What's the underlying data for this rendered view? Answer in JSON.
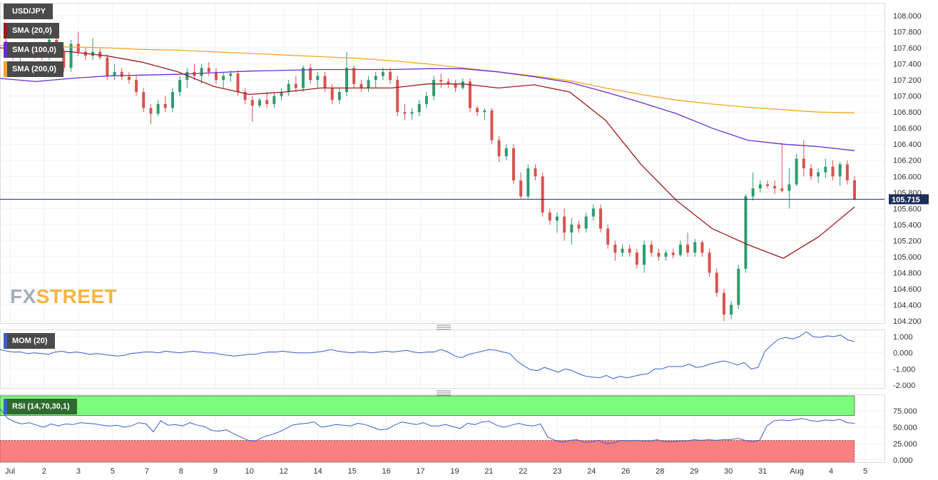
{
  "symbol": "USD/JPY",
  "watermark": {
    "part1": "FX",
    "part2": "STREET"
  },
  "last_price": "105.715",
  "colors": {
    "up": "#2e9b6f",
    "down": "#d9534f",
    "sma20": "#9b1c1c",
    "sma100": "#6a2ecf",
    "sma200": "#f5a623",
    "mom": "#3a5fcd",
    "rsi": "#3a5fcd",
    "rsi_overbought": "#7cfc7c",
    "rsi_oversold": "#f88080",
    "price_line": "#1f2d5a"
  },
  "indicators": {
    "sma20_label": "SMA (20,0)",
    "sma100_label": "SMA (100,0)",
    "sma200_label": "SMA (200,0)",
    "mom_label": "MOM (20)",
    "rsi_label": "RSI (14,70,30,1)"
  },
  "chart_data": {
    "type": "candlestick",
    "title": "USD/JPY",
    "price_axis": {
      "ylim": [
        104.2,
        108.0
      ],
      "ticks": [
        "108.000",
        "107.800",
        "107.600",
        "107.400",
        "107.200",
        "107.000",
        "106.800",
        "106.600",
        "106.400",
        "106.200",
        "106.000",
        "105.800",
        "105.600",
        "105.400",
        "105.200",
        "105.000",
        "104.800",
        "104.600",
        "104.400",
        "104.200"
      ]
    },
    "mom_axis": {
      "ylim": [
        -2.0,
        1.0
      ],
      "ticks": [
        "1.000",
        "0.000",
        "-1.000",
        "-2.000"
      ]
    },
    "rsi_axis": {
      "ylim": [
        0,
        75
      ],
      "ticks": [
        "75.000",
        "50.000",
        "25.000",
        "0.000"
      ],
      "overbought": 70,
      "oversold": 30
    },
    "x_ticks": [
      "Jul",
      "2",
      "3",
      "5",
      "7",
      "8",
      "9",
      "10",
      "12",
      "14",
      "15",
      "16",
      "17",
      "19",
      "21",
      "22",
      "23",
      "24",
      "26",
      "28",
      "29",
      "30",
      "31",
      "Aug",
      "4",
      "5"
    ],
    "sma200": [
      107.63,
      107.62,
      107.61,
      107.6,
      107.58,
      107.57,
      107.55,
      107.53,
      107.51,
      107.49,
      107.47,
      107.44,
      107.4,
      107.35,
      107.3,
      107.25,
      107.19,
      107.1,
      107.02,
      106.95,
      106.9,
      106.86,
      106.83,
      106.8,
      106.79
    ],
    "sma100": [
      107.22,
      107.18,
      107.22,
      107.25,
      107.26,
      107.27,
      107.29,
      107.31,
      107.32,
      107.33,
      107.33,
      107.33,
      107.34,
      107.34,
      107.3,
      107.24,
      107.17,
      107.05,
      106.92,
      106.78,
      106.6,
      106.45,
      106.4,
      106.37,
      106.32
    ],
    "sma20": [
      107.6,
      107.58,
      107.55,
      107.5,
      107.42,
      107.3,
      107.12,
      107.02,
      107.05,
      107.1,
      107.1,
      107.1,
      107.15,
      107.15,
      107.1,
      107.14,
      107.05,
      106.7,
      106.15,
      105.7,
      105.35,
      105.15,
      104.98,
      105.25,
      105.62
    ],
    "candles": [
      {
        "o": 107.68,
        "h": 107.8,
        "l": 107.55,
        "c": 107.6
      },
      {
        "o": 107.6,
        "h": 107.65,
        "l": 107.45,
        "c": 107.5
      },
      {
        "o": 107.5,
        "h": 107.6,
        "l": 107.4,
        "c": 107.55
      },
      {
        "o": 107.55,
        "h": 107.62,
        "l": 107.48,
        "c": 107.52
      },
      {
        "o": 107.52,
        "h": 107.58,
        "l": 107.46,
        "c": 107.5
      },
      {
        "o": 107.5,
        "h": 107.55,
        "l": 107.45,
        "c": 107.48
      },
      {
        "o": 107.48,
        "h": 107.75,
        "l": 107.45,
        "c": 107.7
      },
      {
        "o": 107.7,
        "h": 107.75,
        "l": 107.5,
        "c": 107.55
      },
      {
        "o": 107.55,
        "h": 107.6,
        "l": 107.3,
        "c": 107.35
      },
      {
        "o": 107.35,
        "h": 107.7,
        "l": 107.3,
        "c": 107.65
      },
      {
        "o": 107.65,
        "h": 107.8,
        "l": 107.5,
        "c": 107.55
      },
      {
        "o": 107.55,
        "h": 107.6,
        "l": 107.45,
        "c": 107.5
      },
      {
        "o": 107.5,
        "h": 107.72,
        "l": 107.45,
        "c": 107.55
      },
      {
        "o": 107.55,
        "h": 107.6,
        "l": 107.45,
        "c": 107.48
      },
      {
        "o": 107.48,
        "h": 107.52,
        "l": 107.2,
        "c": 107.25
      },
      {
        "o": 107.25,
        "h": 107.4,
        "l": 107.2,
        "c": 107.3
      },
      {
        "o": 107.3,
        "h": 107.35,
        "l": 107.2,
        "c": 107.24
      },
      {
        "o": 107.24,
        "h": 107.3,
        "l": 107.15,
        "c": 107.2
      },
      {
        "o": 107.2,
        "h": 107.25,
        "l": 107.0,
        "c": 107.05
      },
      {
        "o": 107.05,
        "h": 107.1,
        "l": 106.8,
        "c": 106.85
      },
      {
        "o": 106.85,
        "h": 106.9,
        "l": 106.65,
        "c": 106.78
      },
      {
        "o": 106.78,
        "h": 106.95,
        "l": 106.75,
        "c": 106.9
      },
      {
        "o": 106.9,
        "h": 107.0,
        "l": 106.8,
        "c": 106.85
      },
      {
        "o": 106.85,
        "h": 107.1,
        "l": 106.8,
        "c": 107.05
      },
      {
        "o": 107.05,
        "h": 107.25,
        "l": 107.0,
        "c": 107.2
      },
      {
        "o": 107.2,
        "h": 107.35,
        "l": 107.1,
        "c": 107.3
      },
      {
        "o": 107.3,
        "h": 107.4,
        "l": 107.2,
        "c": 107.25
      },
      {
        "o": 107.25,
        "h": 107.4,
        "l": 107.15,
        "c": 107.35
      },
      {
        "o": 107.35,
        "h": 107.42,
        "l": 107.25,
        "c": 107.3
      },
      {
        "o": 107.3,
        "h": 107.35,
        "l": 107.15,
        "c": 107.2
      },
      {
        "o": 107.2,
        "h": 107.3,
        "l": 107.1,
        "c": 107.25
      },
      {
        "o": 107.25,
        "h": 107.32,
        "l": 107.18,
        "c": 107.28
      },
      {
        "o": 107.28,
        "h": 107.32,
        "l": 107.0,
        "c": 107.05
      },
      {
        "o": 107.05,
        "h": 107.1,
        "l": 106.9,
        "c": 106.95
      },
      {
        "o": 106.95,
        "h": 107.0,
        "l": 106.68,
        "c": 106.88
      },
      {
        "o": 106.88,
        "h": 106.98,
        "l": 106.85,
        "c": 106.95
      },
      {
        "o": 106.95,
        "h": 107.05,
        "l": 106.85,
        "c": 106.9
      },
      {
        "o": 106.9,
        "h": 107.05,
        "l": 106.85,
        "c": 107.0
      },
      {
        "o": 107.0,
        "h": 107.1,
        "l": 106.95,
        "c": 107.05
      },
      {
        "o": 107.05,
        "h": 107.2,
        "l": 107.0,
        "c": 107.15
      },
      {
        "o": 107.15,
        "h": 107.25,
        "l": 107.05,
        "c": 107.1
      },
      {
        "o": 107.1,
        "h": 107.38,
        "l": 107.05,
        "c": 107.35
      },
      {
        "o": 107.35,
        "h": 107.4,
        "l": 107.15,
        "c": 107.2
      },
      {
        "o": 107.2,
        "h": 107.3,
        "l": 107.1,
        "c": 107.25
      },
      {
        "o": 107.25,
        "h": 107.3,
        "l": 107.05,
        "c": 107.1
      },
      {
        "o": 107.1,
        "h": 107.15,
        "l": 106.9,
        "c": 106.95
      },
      {
        "o": 106.95,
        "h": 107.1,
        "l": 106.9,
        "c": 107.05
      },
      {
        "o": 107.05,
        "h": 107.55,
        "l": 107.0,
        "c": 107.35
      },
      {
        "o": 107.35,
        "h": 107.38,
        "l": 107.1,
        "c": 107.15
      },
      {
        "o": 107.15,
        "h": 107.2,
        "l": 107.05,
        "c": 107.1
      },
      {
        "o": 107.1,
        "h": 107.25,
        "l": 107.05,
        "c": 107.2
      },
      {
        "o": 107.2,
        "h": 107.3,
        "l": 107.1,
        "c": 107.25
      },
      {
        "o": 107.25,
        "h": 107.35,
        "l": 107.2,
        "c": 107.3
      },
      {
        "o": 107.3,
        "h": 107.35,
        "l": 107.15,
        "c": 107.2
      },
      {
        "o": 107.2,
        "h": 107.25,
        "l": 106.75,
        "c": 106.8
      },
      {
        "o": 106.8,
        "h": 106.9,
        "l": 106.7,
        "c": 106.78
      },
      {
        "o": 106.78,
        "h": 106.85,
        "l": 106.7,
        "c": 106.8
      },
      {
        "o": 106.8,
        "h": 106.95,
        "l": 106.75,
        "c": 106.9
      },
      {
        "o": 106.9,
        "h": 107.05,
        "l": 106.85,
        "c": 107.0
      },
      {
        "o": 107.0,
        "h": 107.25,
        "l": 106.95,
        "c": 107.2
      },
      {
        "o": 107.2,
        "h": 107.28,
        "l": 107.1,
        "c": 107.18
      },
      {
        "o": 107.18,
        "h": 107.22,
        "l": 107.1,
        "c": 107.15
      },
      {
        "o": 107.15,
        "h": 107.2,
        "l": 107.05,
        "c": 107.1
      },
      {
        "o": 107.1,
        "h": 107.22,
        "l": 107.08,
        "c": 107.18
      },
      {
        "o": 107.18,
        "h": 107.22,
        "l": 106.8,
        "c": 106.85
      },
      {
        "o": 106.85,
        "h": 106.88,
        "l": 106.75,
        "c": 106.8
      },
      {
        "o": 106.8,
        "h": 106.85,
        "l": 106.7,
        "c": 106.82
      },
      {
        "o": 106.82,
        "h": 106.85,
        "l": 106.4,
        "c": 106.45
      },
      {
        "o": 106.45,
        "h": 106.5,
        "l": 106.18,
        "c": 106.25
      },
      {
        "o": 106.25,
        "h": 106.4,
        "l": 106.2,
        "c": 106.35
      },
      {
        "o": 106.35,
        "h": 106.4,
        "l": 105.9,
        "c": 105.95
      },
      {
        "o": 105.95,
        "h": 106.05,
        "l": 105.72,
        "c": 105.75
      },
      {
        "o": 105.75,
        "h": 106.15,
        "l": 105.72,
        "c": 106.1
      },
      {
        "o": 106.1,
        "h": 106.15,
        "l": 105.95,
        "c": 106.0
      },
      {
        "o": 106.0,
        "h": 106.05,
        "l": 105.5,
        "c": 105.55
      },
      {
        "o": 105.55,
        "h": 105.6,
        "l": 105.4,
        "c": 105.45
      },
      {
        "o": 105.45,
        "h": 105.55,
        "l": 105.3,
        "c": 105.5
      },
      {
        "o": 105.5,
        "h": 105.6,
        "l": 105.2,
        "c": 105.3
      },
      {
        "o": 105.3,
        "h": 105.48,
        "l": 105.15,
        "c": 105.4
      },
      {
        "o": 105.4,
        "h": 105.45,
        "l": 105.3,
        "c": 105.35
      },
      {
        "o": 105.35,
        "h": 105.55,
        "l": 105.3,
        "c": 105.5
      },
      {
        "o": 105.5,
        "h": 105.65,
        "l": 105.45,
        "c": 105.6
      },
      {
        "o": 105.6,
        "h": 105.65,
        "l": 105.3,
        "c": 105.35
      },
      {
        "o": 105.35,
        "h": 105.4,
        "l": 105.1,
        "c": 105.15
      },
      {
        "o": 105.15,
        "h": 105.2,
        "l": 104.95,
        "c": 105.05
      },
      {
        "o": 105.05,
        "h": 105.15,
        "l": 105.0,
        "c": 105.1
      },
      {
        "o": 105.1,
        "h": 105.15,
        "l": 105.0,
        "c": 105.05
      },
      {
        "o": 105.05,
        "h": 105.1,
        "l": 104.85,
        "c": 104.9
      },
      {
        "o": 104.9,
        "h": 105.2,
        "l": 104.8,
        "c": 105.15
      },
      {
        "o": 105.15,
        "h": 105.2,
        "l": 105.0,
        "c": 105.05
      },
      {
        "o": 105.05,
        "h": 105.1,
        "l": 104.95,
        "c": 105.0
      },
      {
        "o": 105.0,
        "h": 105.08,
        "l": 104.95,
        "c": 105.05
      },
      {
        "o": 105.05,
        "h": 105.1,
        "l": 104.98,
        "c": 105.02
      },
      {
        "o": 105.02,
        "h": 105.2,
        "l": 105.0,
        "c": 105.15
      },
      {
        "o": 105.15,
        "h": 105.3,
        "l": 105.0,
        "c": 105.05
      },
      {
        "o": 105.05,
        "h": 105.22,
        "l": 105.0,
        "c": 105.18
      },
      {
        "o": 105.18,
        "h": 105.2,
        "l": 105.0,
        "c": 105.05
      },
      {
        "o": 105.05,
        "h": 105.1,
        "l": 104.75,
        "c": 104.8
      },
      {
        "o": 104.8,
        "h": 104.85,
        "l": 104.5,
        "c": 104.55
      },
      {
        "o": 104.55,
        "h": 104.6,
        "l": 104.2,
        "c": 104.28
      },
      {
        "o": 104.28,
        "h": 104.45,
        "l": 104.22,
        "c": 104.4
      },
      {
        "o": 104.4,
        "h": 104.9,
        "l": 104.35,
        "c": 104.85
      },
      {
        "o": 104.85,
        "h": 105.78,
        "l": 104.8,
        "c": 105.75
      },
      {
        "o": 105.75,
        "h": 106.05,
        "l": 105.7,
        "c": 105.85
      },
      {
        "o": 105.85,
        "h": 105.95,
        "l": 105.8,
        "c": 105.9
      },
      {
        "o": 105.9,
        "h": 105.95,
        "l": 105.85,
        "c": 105.88
      },
      {
        "o": 105.88,
        "h": 105.95,
        "l": 105.78,
        "c": 105.85
      },
      {
        "o": 105.85,
        "h": 106.42,
        "l": 105.8,
        "c": 105.82
      },
      {
        "o": 105.82,
        "h": 106.1,
        "l": 105.6,
        "c": 105.9
      },
      {
        "o": 105.9,
        "h": 106.28,
        "l": 105.88,
        "c": 106.22
      },
      {
        "o": 106.22,
        "h": 106.45,
        "l": 106.0,
        "c": 106.1
      },
      {
        "o": 106.1,
        "h": 106.15,
        "l": 105.95,
        "c": 106.0
      },
      {
        "o": 106.0,
        "h": 106.1,
        "l": 105.92,
        "c": 106.05
      },
      {
        "o": 106.05,
        "h": 106.22,
        "l": 105.98,
        "c": 106.12
      },
      {
        "o": 106.12,
        "h": 106.2,
        "l": 105.95,
        "c": 106.0
      },
      {
        "o": 106.0,
        "h": 106.18,
        "l": 105.88,
        "c": 106.15
      },
      {
        "o": 106.15,
        "h": 106.2,
        "l": 105.9,
        "c": 105.95
      },
      {
        "o": 105.95,
        "h": 106.0,
        "l": 105.7,
        "c": 105.715
      }
    ],
    "mom": [
      0.2,
      0.1,
      0.05,
      0.05,
      -0.05,
      0.0,
      -0.05,
      -0.1,
      0.05,
      0.1,
      0.0,
      0.05,
      0.0,
      -0.1,
      -0.05,
      -0.1,
      -0.15,
      -0.2,
      -0.15,
      -0.05,
      0.0,
      0.05,
      0.05,
      0.0,
      0.1,
      0.05,
      0.0,
      0.05,
      0.1,
      0.05,
      0.0,
      0.0,
      -0.1,
      -0.15,
      -0.2,
      -0.15,
      -0.1,
      -0.1,
      0.0,
      0.05,
      0.05,
      0.1,
      0.05,
      0.0,
      0.0,
      0.0,
      0.05,
      0.1,
      0.2,
      0.1,
      0.05,
      0.0,
      0.05,
      0.05,
      0.0,
      0.05,
      0.1,
      0.05,
      0.1,
      0.15,
      0.05,
      0.0,
      0.05,
      0.05,
      0.2,
      0.05,
      -0.2,
      -0.3,
      -0.1,
      0.0,
      0.1,
      0.2,
      0.15,
      0.05,
      -0.05,
      -0.5,
      -0.8,
      -1.05,
      -1.1,
      -0.9,
      -1.05,
      -1.2,
      -1.0,
      -1.1,
      -1.3,
      -1.45,
      -1.5,
      -1.55,
      -1.4,
      -1.6,
      -1.45,
      -1.55,
      -1.45,
      -1.35,
      -1.3,
      -1.0,
      -1.0,
      -0.85,
      -0.85,
      -0.85,
      -0.7,
      -0.9,
      -0.85,
      -0.7,
      -0.6,
      -0.5,
      -0.6,
      -0.75,
      -0.6,
      -1.0,
      -0.9,
      0.1,
      0.5,
      0.85,
      0.95,
      0.85,
      1.0,
      1.3,
      1.0,
      0.95,
      1.05,
      1.0,
      1.1,
      0.8,
      0.7
    ],
    "rsi": [
      78,
      64,
      58,
      55,
      57,
      53,
      50,
      55,
      52,
      55,
      54,
      57,
      56,
      55,
      53,
      52,
      53,
      50,
      52,
      57,
      55,
      43,
      60,
      53,
      54,
      52,
      57,
      53,
      51,
      45,
      44,
      46,
      40,
      35,
      30,
      29,
      35,
      38,
      42,
      47,
      53,
      55,
      56,
      58,
      50,
      52,
      54,
      53,
      52,
      56,
      54,
      50,
      46,
      47,
      53,
      58,
      56,
      54,
      57,
      52,
      52,
      54,
      51,
      48,
      56,
      54,
      58,
      59,
      53,
      50,
      53,
      56,
      53,
      52,
      55,
      35,
      30,
      27,
      30,
      31,
      27,
      28,
      30,
      25,
      26,
      30,
      29,
      30,
      29,
      29,
      31,
      28,
      28,
      29,
      29,
      31,
      30,
      31,
      30,
      31,
      31,
      33,
      30,
      28,
      30,
      52,
      60,
      61,
      60,
      62,
      63,
      60,
      59,
      61,
      60,
      62,
      57,
      56
    ]
  }
}
